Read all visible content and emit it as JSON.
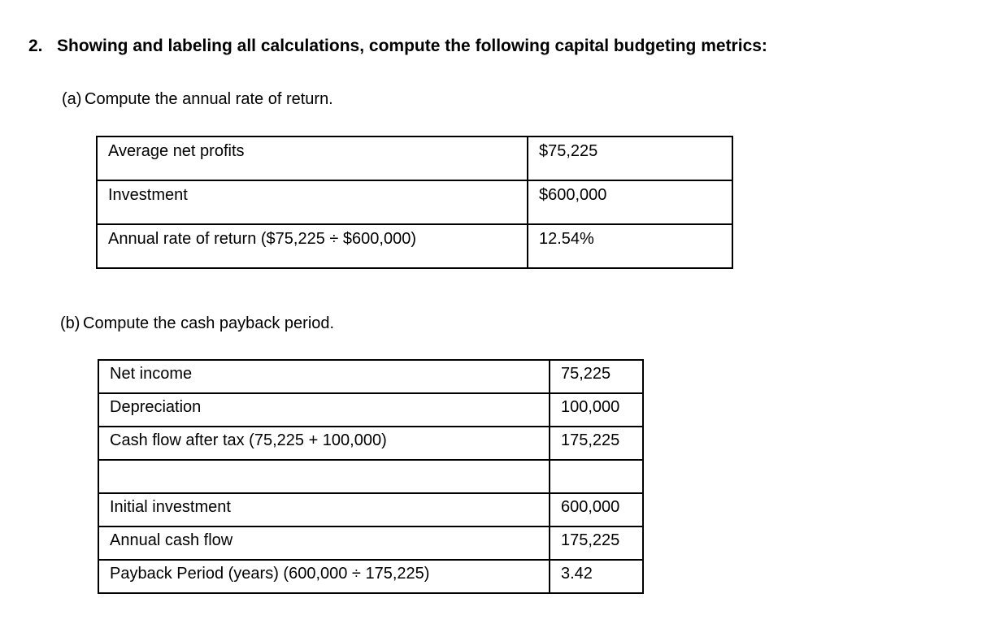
{
  "heading": {
    "number": "2.",
    "text": "Showing and labeling all calculations, compute the following capital budgeting metrics:"
  },
  "section_a": {
    "label": "(a)",
    "title": "Compute the annual rate of return.",
    "table": {
      "rows": [
        {
          "label": "Average net profits",
          "value": "$75,225"
        },
        {
          "label": "Investment",
          "value": "$600,000"
        },
        {
          "label": "Annual rate of return ($75,225 ÷ $600,000)",
          "value": "12.54%"
        }
      ]
    }
  },
  "section_b": {
    "label": "(b)",
    "title": "Compute the cash payback period.",
    "table": {
      "rows": [
        {
          "label": "Net income",
          "value": "75,225"
        },
        {
          "label": "Depreciation",
          "value": "100,000"
        },
        {
          "label": "Cash flow after tax (75,225 + 100,000)",
          "value": "175,225"
        },
        {
          "label": "",
          "value": ""
        },
        {
          "label": "Initial investment",
          "value": "600,000"
        },
        {
          "label": "Annual cash flow",
          "value": "175,225"
        },
        {
          "label": "Payback Period (years) (600,000 ÷ 175,225)",
          "value": "3.42"
        }
      ]
    }
  }
}
